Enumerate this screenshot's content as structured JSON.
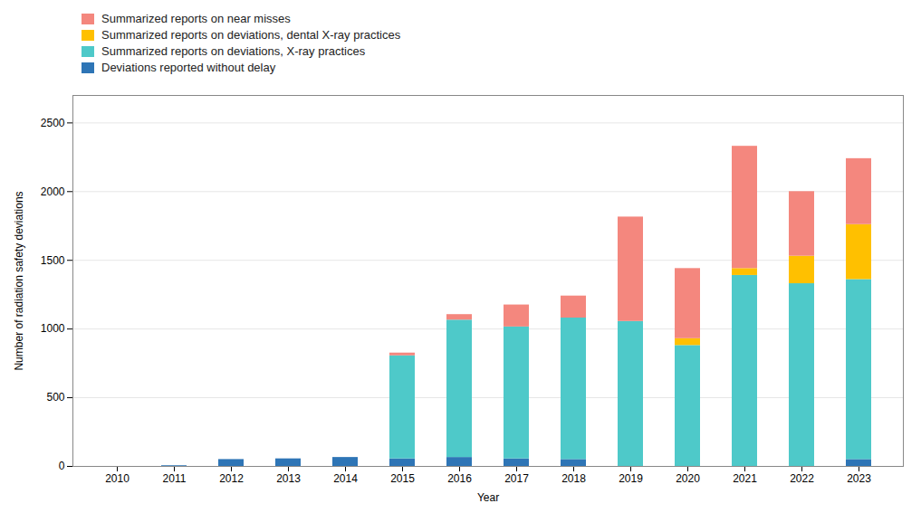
{
  "chart_data": {
    "type": "bar",
    "stacked": true,
    "xlabel": "Year",
    "ylabel": "Number of radiation safety deviations",
    "categories": [
      "2010",
      "2011",
      "2012",
      "2013",
      "2014",
      "2015",
      "2016",
      "2017",
      "2018",
      "2019",
      "2020",
      "2021",
      "2022",
      "2023"
    ],
    "series": [
      {
        "name": "Deviations reported without delay",
        "color": "#2e75b6",
        "values": [
          0,
          5,
          50,
          55,
          65,
          55,
          65,
          55,
          50,
          0,
          0,
          0,
          0,
          50
        ]
      },
      {
        "name": "Summarized reports on deviations, X-ray practices",
        "color": "#4ec9c9",
        "values": [
          0,
          0,
          0,
          0,
          0,
          750,
          1000,
          960,
          1030,
          1055,
          880,
          1390,
          1330,
          1310
        ]
      },
      {
        "name": "Summarized reports on deviations, dental X-ray practices",
        "color": "#ffc000",
        "values": [
          0,
          0,
          0,
          0,
          0,
          0,
          0,
          0,
          0,
          0,
          50,
          50,
          200,
          400
        ]
      },
      {
        "name": "Summarized reports on near misses",
        "color": "#f4877e",
        "values": [
          0,
          0,
          0,
          0,
          0,
          20,
          40,
          160,
          160,
          760,
          510,
          890,
          470,
          480
        ]
      }
    ],
    "ylim": [
      0,
      2700
    ],
    "yticks": [
      0,
      500,
      1000,
      1500,
      2000,
      2500
    ],
    "grid": true,
    "legend": "top"
  }
}
